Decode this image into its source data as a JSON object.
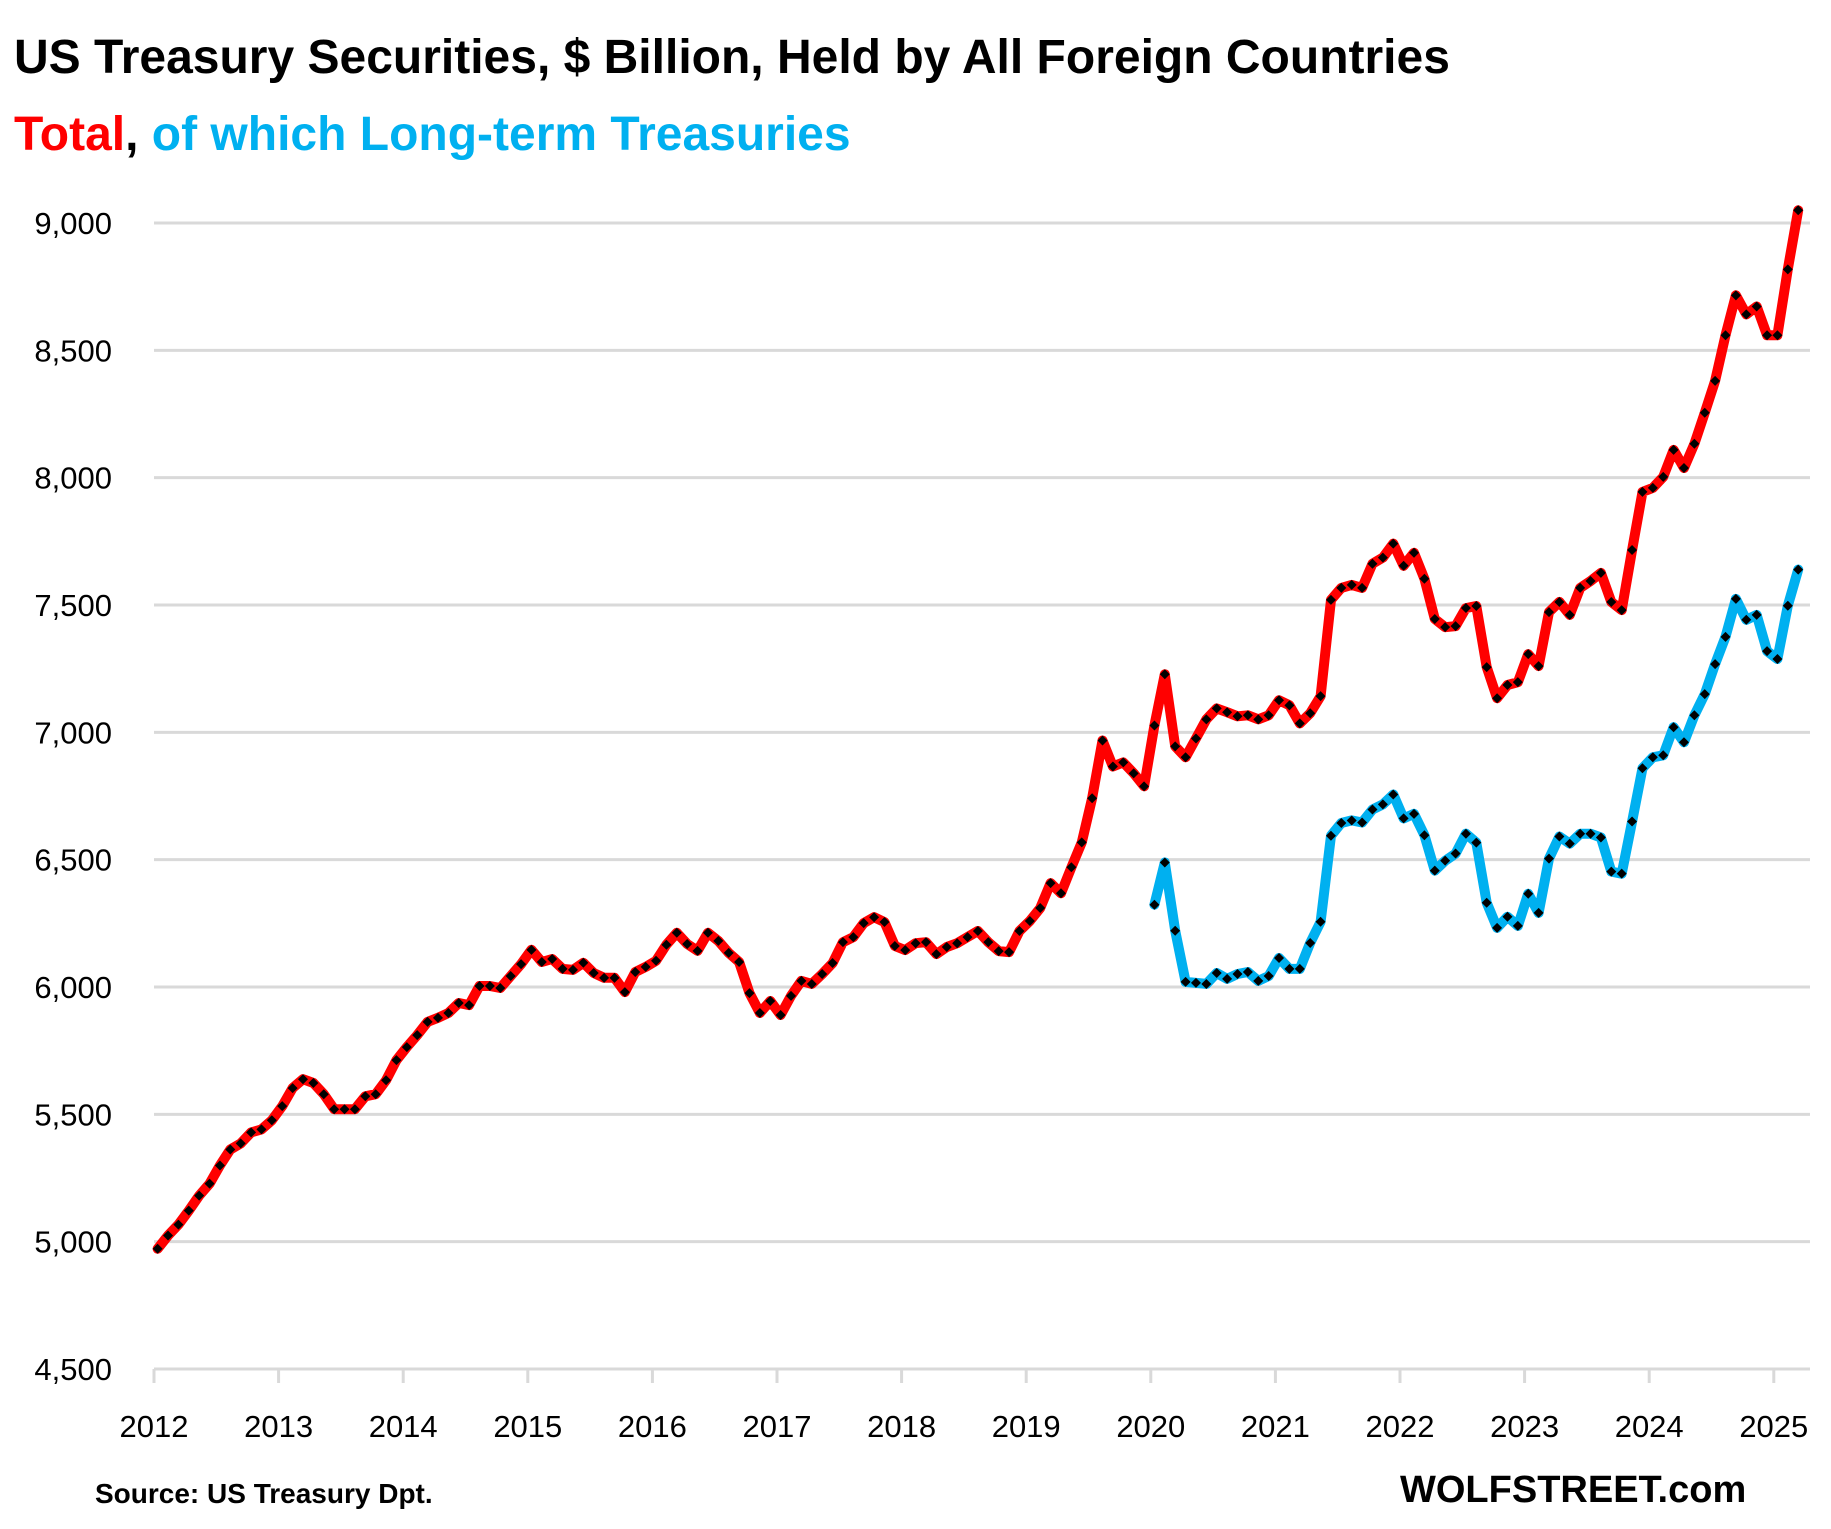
{
  "chart_data": {
    "type": "line",
    "title": "US Treasury Securities, $ Billion, Held by All Foreign Countries",
    "subtitle_parts": [
      {
        "text": "Total",
        "color": "#FF0000"
      },
      {
        "text": ", ",
        "color": "#000000"
      },
      {
        "text": "of which Long-term Treasuries",
        "color": "#00B0F0"
      }
    ],
    "xlabel": "",
    "ylabel": "",
    "x_start": "2012-01",
    "x_frequency": "monthly",
    "x_tick_labels": [
      "2012",
      "2013",
      "2014",
      "2015",
      "2016",
      "2017",
      "2018",
      "2019",
      "2020",
      "2021",
      "2022",
      "2023",
      "2024",
      "2025"
    ],
    "y_tick_labels": [
      "4,500",
      "5,000",
      "5,500",
      "6,000",
      "6,500",
      "7,000",
      "7,500",
      "8,000",
      "8,500",
      "9,000"
    ],
    "y_ticks": [
      4500,
      5000,
      5500,
      6000,
      6500,
      7000,
      7500,
      8000,
      8500,
      9000
    ],
    "ylim": [
      4500,
      9000
    ],
    "grid": "horizontal",
    "marker": "black diamond",
    "series": [
      {
        "name": "Total",
        "color": "#FF0000",
        "start_index": 0,
        "values": [
          4972,
          5024,
          5067,
          5122,
          5181,
          5228,
          5299,
          5362,
          5386,
          5429,
          5441,
          5477,
          5532,
          5603,
          5638,
          5623,
          5579,
          5520,
          5520,
          5520,
          5571,
          5579,
          5634,
          5713,
          5764,
          5811,
          5863,
          5879,
          5898,
          5937,
          5929,
          6004,
          6004,
          5996,
          6043,
          6090,
          6146,
          6098,
          6110,
          6071,
          6067,
          6095,
          6055,
          6036,
          6036,
          5980,
          6059,
          6079,
          6103,
          6166,
          6213,
          6169,
          6142,
          6213,
          6181,
          6134,
          6098,
          5976,
          5898,
          5945,
          5890,
          5965,
          6024,
          6012,
          6051,
          6094,
          6176,
          6196,
          6251,
          6274,
          6255,
          6161,
          6145,
          6172,
          6176,
          6129,
          6157,
          6172,
          6196,
          6220,
          6176,
          6141,
          6137,
          6220,
          6259,
          6310,
          6408,
          6368,
          6470,
          6568,
          6741,
          6968,
          6866,
          6882,
          6839,
          6788,
          7027,
          7228,
          6945,
          6902,
          6976,
          7051,
          7094,
          7079,
          7063,
          7067,
          7051,
          7067,
          7126,
          7106,
          7035,
          7075,
          7142,
          7520,
          7567,
          7579,
          7567,
          7662,
          7686,
          7741,
          7654,
          7705,
          7603,
          7445,
          7413,
          7417,
          7488,
          7496,
          7256,
          7134,
          7186,
          7197,
          7307,
          7260,
          7472,
          7512,
          7461,
          7567,
          7594,
          7626,
          7512,
          7480,
          7716,
          7944,
          7960,
          8003,
          8109,
          8038,
          8133,
          8255,
          8380,
          8559,
          8716,
          8641,
          8672,
          8559,
          8559,
          8818,
          9050
        ]
      },
      {
        "name": "of which Long-term Treasuries",
        "color": "#00B0F0",
        "start_index": 96,
        "values": [
          6323,
          6489,
          6221,
          6020,
          6016,
          6012,
          6055,
          6032,
          6051,
          6059,
          6024,
          6043,
          6114,
          6071,
          6071,
          6173,
          6256,
          6594,
          6644,
          6654,
          6646,
          6697,
          6717,
          6756,
          6662,
          6680,
          6596,
          6457,
          6496,
          6524,
          6602,
          6567,
          6331,
          6232,
          6276,
          6240,
          6366,
          6291,
          6504,
          6591,
          6563,
          6602,
          6602,
          6587,
          6453,
          6445,
          6650,
          6859,
          6902,
          6910,
          7020,
          6961,
          7067,
          7150,
          7268,
          7375,
          7524,
          7442,
          7461,
          7319,
          7288,
          7497,
          7639
        ]
      }
    ],
    "annotations": {
      "source": "Source: US Treasury  Dpt.",
      "brand": "WOLFSTREET.com"
    }
  }
}
